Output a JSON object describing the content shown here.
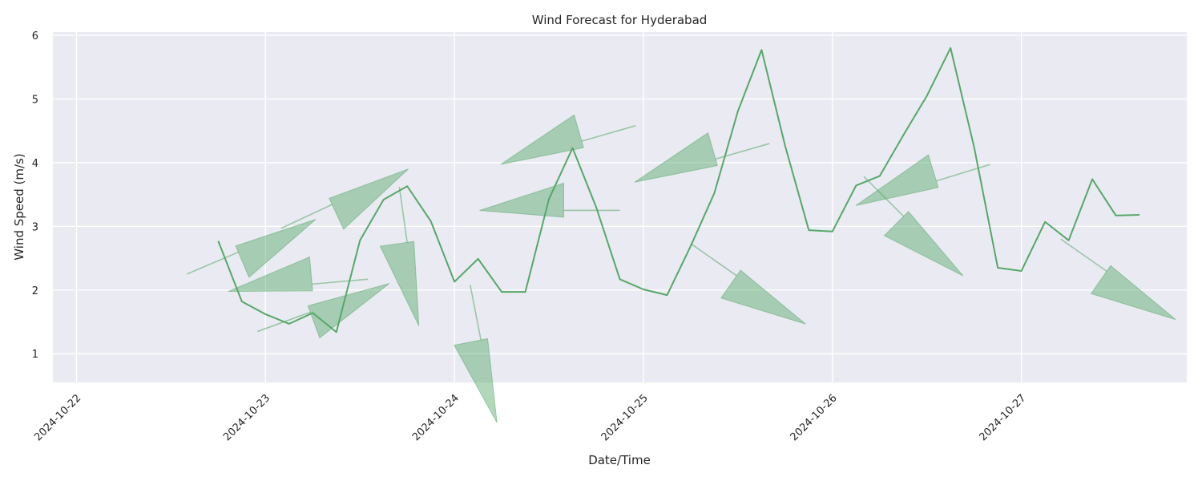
{
  "chart_data": {
    "type": "line",
    "title": "Wind Forecast for Hyderabad",
    "xlabel": "Date/Time",
    "ylabel": "Wind Speed (m/s)",
    "x_ticks": [
      "2024-10-22",
      "2024-10-23",
      "2024-10-24",
      "2024-10-25",
      "2024-10-26",
      "2024-10-27"
    ],
    "y_ticks": [
      1,
      2,
      3,
      4,
      5,
      6
    ],
    "ylim": [
      0.55,
      6.05
    ],
    "xlim": [
      "2024-10-21T21:00",
      "2024-10-27T21:00"
    ],
    "grid": true,
    "colors": {
      "line": "#55a868",
      "arrow_fill": "#55a868",
      "plot_background": "#eaeaf2",
      "grid": "#ffffff"
    },
    "series": [
      {
        "x": [
          "2024-10-22T18:00",
          "2024-10-22T21:00",
          "2024-10-23T00:00",
          "2024-10-23T03:00",
          "2024-10-23T06:00",
          "2024-10-23T09:00",
          "2024-10-23T12:00",
          "2024-10-23T15:00",
          "2024-10-23T18:00",
          "2024-10-23T21:00",
          "2024-10-24T00:00",
          "2024-10-24T03:00",
          "2024-10-24T06:00",
          "2024-10-24T09:00",
          "2024-10-24T12:00",
          "2024-10-24T15:00",
          "2024-10-24T18:00",
          "2024-10-24T21:00",
          "2024-10-25T00:00",
          "2024-10-25T03:00",
          "2024-10-25T06:00",
          "2024-10-25T09:00",
          "2024-10-25T12:00",
          "2024-10-25T15:00",
          "2024-10-25T18:00",
          "2024-10-25T21:00",
          "2024-10-26T00:00",
          "2024-10-26T03:00",
          "2024-10-26T06:00",
          "2024-10-26T09:00",
          "2024-10-26T12:00",
          "2024-10-26T15:00",
          "2024-10-26T18:00",
          "2024-10-26T21:00",
          "2024-10-27T00:00",
          "2024-10-27T03:00",
          "2024-10-27T06:00",
          "2024-10-27T09:00",
          "2024-10-27T12:00",
          "2024-10-27T15:00"
        ],
        "values": [
          2.77,
          1.82,
          1.62,
          1.47,
          1.64,
          1.34,
          2.78,
          3.42,
          3.63,
          3.08,
          2.13,
          2.49,
          1.97,
          1.97,
          3.43,
          4.23,
          3.3,
          2.17,
          2.01,
          1.92,
          2.69,
          3.52,
          4.81,
          5.77,
          4.26,
          2.94,
          2.92,
          3.64,
          3.79,
          4.43,
          5.05,
          5.8,
          4.24,
          2.35,
          2.3,
          3.07,
          2.78,
          3.74,
          3.17,
          3.18
        ]
      }
    ],
    "direction_arrows": [
      {
        "x": "2024-10-22T14:00",
        "y": 2.25,
        "deg": 23
      },
      {
        "x": "2024-10-22T23:00",
        "y": 1.35,
        "deg": 20
      },
      {
        "x": "2024-10-23T02:00",
        "y": 2.97,
        "deg": 25
      },
      {
        "x": "2024-10-23T17:00",
        "y": 3.62,
        "deg": 278
      },
      {
        "x": "2024-10-23T13:00",
        "y": 2.17,
        "deg": 185
      },
      {
        "x": "2024-10-24T02:00",
        "y": 2.08,
        "deg": 281
      },
      {
        "x": "2024-10-24T21:00",
        "y": 3.25,
        "deg": 180
      },
      {
        "x": "2024-10-24T23:00",
        "y": 4.58,
        "deg": 196
      },
      {
        "x": "2024-10-25T06:00",
        "y": 2.73,
        "deg": 325
      },
      {
        "x": "2024-10-25T16:00",
        "y": 4.3,
        "deg": 196
      },
      {
        "x": "2024-10-26T04:00",
        "y": 3.78,
        "deg": 315
      },
      {
        "x": "2024-10-26T20:00",
        "y": 3.97,
        "deg": 197
      },
      {
        "x": "2024-10-27T05:00",
        "y": 2.8,
        "deg": 325
      }
    ]
  }
}
